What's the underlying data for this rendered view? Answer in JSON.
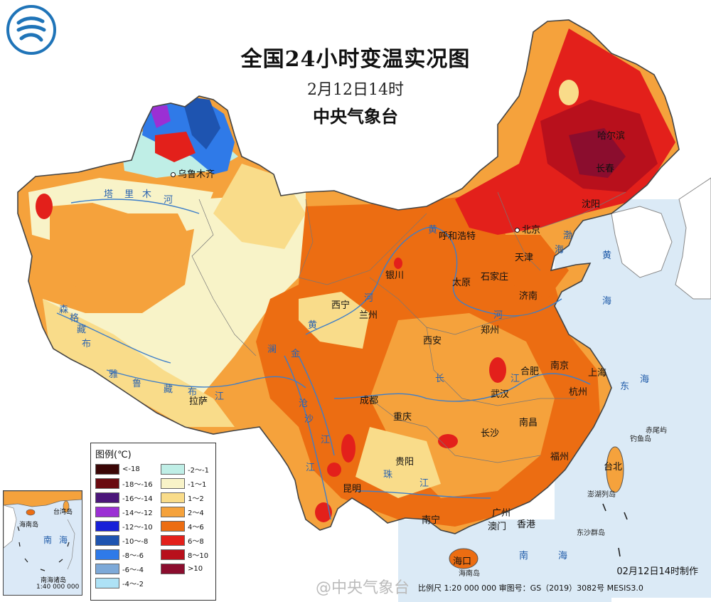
{
  "title": {
    "main": "全国24小时变温实况图",
    "time": "2月12日14时",
    "org": "中央气象台"
  },
  "legend": {
    "title": "图例(℃)",
    "items": [
      {
        "label": "<-18",
        "color": "#3a0606"
      },
      {
        "label": "-2～-1",
        "color": "#bfeee6"
      },
      {
        "label": "-18～-16",
        "color": "#6a0a10"
      },
      {
        "label": "-1～1",
        "color": "#f8f3c8"
      },
      {
        "label": "-16～-14",
        "color": "#4b167a"
      },
      {
        "label": "1～2",
        "color": "#f9dc8a"
      },
      {
        "label": "-14～-12",
        "color": "#9b2fd4"
      },
      {
        "label": "2～4",
        "color": "#f5a23c"
      },
      {
        "label": "-12～-10",
        "color": "#1720d8"
      },
      {
        "label": "4～6",
        "color": "#ec6d12"
      },
      {
        "label": "-10～-8",
        "color": "#1e54b0"
      },
      {
        "label": "6～8",
        "color": "#e3201b"
      },
      {
        "label": "-8～-6",
        "color": "#2f7ae8"
      },
      {
        "label": "8～10",
        "color": "#b8101c"
      },
      {
        "label": "-6～-4",
        "color": "#7da9d8"
      },
      {
        "label": ">10",
        "color": "#8b0d2e"
      },
      {
        "label": "-4～-2",
        "color": "#aee2f6"
      }
    ]
  },
  "cities": [
    {
      "name": "乌鲁木齐"
    },
    {
      "name": "哈尔滨"
    },
    {
      "name": "长春"
    },
    {
      "name": "沈阳"
    },
    {
      "name": "北京"
    },
    {
      "name": "天津"
    },
    {
      "name": "呼和浩特"
    },
    {
      "name": "银川"
    },
    {
      "name": "太原"
    },
    {
      "name": "石家庄"
    },
    {
      "name": "济南"
    },
    {
      "name": "西宁"
    },
    {
      "name": "兰州"
    },
    {
      "name": "郑州"
    },
    {
      "name": "西安"
    },
    {
      "name": "合肥"
    },
    {
      "name": "南京"
    },
    {
      "name": "上海"
    },
    {
      "name": "杭州"
    },
    {
      "name": "武汉"
    },
    {
      "name": "成都"
    },
    {
      "name": "拉萨"
    },
    {
      "name": "重庆"
    },
    {
      "name": "南昌"
    },
    {
      "name": "长沙"
    },
    {
      "name": "贵阳"
    },
    {
      "name": "福州"
    },
    {
      "name": "台北"
    },
    {
      "name": "昆明"
    },
    {
      "name": "南宁"
    },
    {
      "name": "广州"
    },
    {
      "name": "澳门"
    },
    {
      "name": "香港"
    },
    {
      "name": "海口"
    }
  ],
  "water": {
    "bohai": "渤",
    "bohai2": "海",
    "yellow": "黄",
    "yellow2": "海",
    "east": "东",
    "east2": "海",
    "south": "南",
    "south2": "海"
  },
  "rivers": {
    "tarim": [
      "塔",
      "里",
      "木",
      "河"
    ],
    "senge": [
      "森",
      "格",
      "藏",
      "布"
    ],
    "yarlung": [
      "雅",
      "鲁",
      "藏",
      "布",
      "江"
    ],
    "huanghe_upper": [
      "黄",
      "河"
    ],
    "huanghe_north": "黄",
    "huanghe_east": "河",
    "lancang": [
      "澜",
      "沧",
      "江"
    ],
    "jinsha": [
      "金",
      "沙",
      "江"
    ],
    "changjiang": [
      "长",
      "江"
    ],
    "zhujiang": [
      "珠",
      "江"
    ]
  },
  "islands": {
    "chiwei": "赤尾屿",
    "diaoyu": "钓鱼岛",
    "penghu": "澎湖列岛",
    "dongsha": "东沙群岛",
    "hainan_island": "海南岛"
  },
  "inset": {
    "title": "南海诸岛",
    "scale": "1:40 000 000",
    "taiwan": "台湾岛",
    "hainan": "海南岛",
    "sea": [
      "南",
      "海"
    ]
  },
  "footer": {
    "made": "02月12日14时制作",
    "scale": "比例尺 1:20 000 000 审图号：GS（2019）3082号 MESIS3.0",
    "watermark": "@中央气象台"
  }
}
